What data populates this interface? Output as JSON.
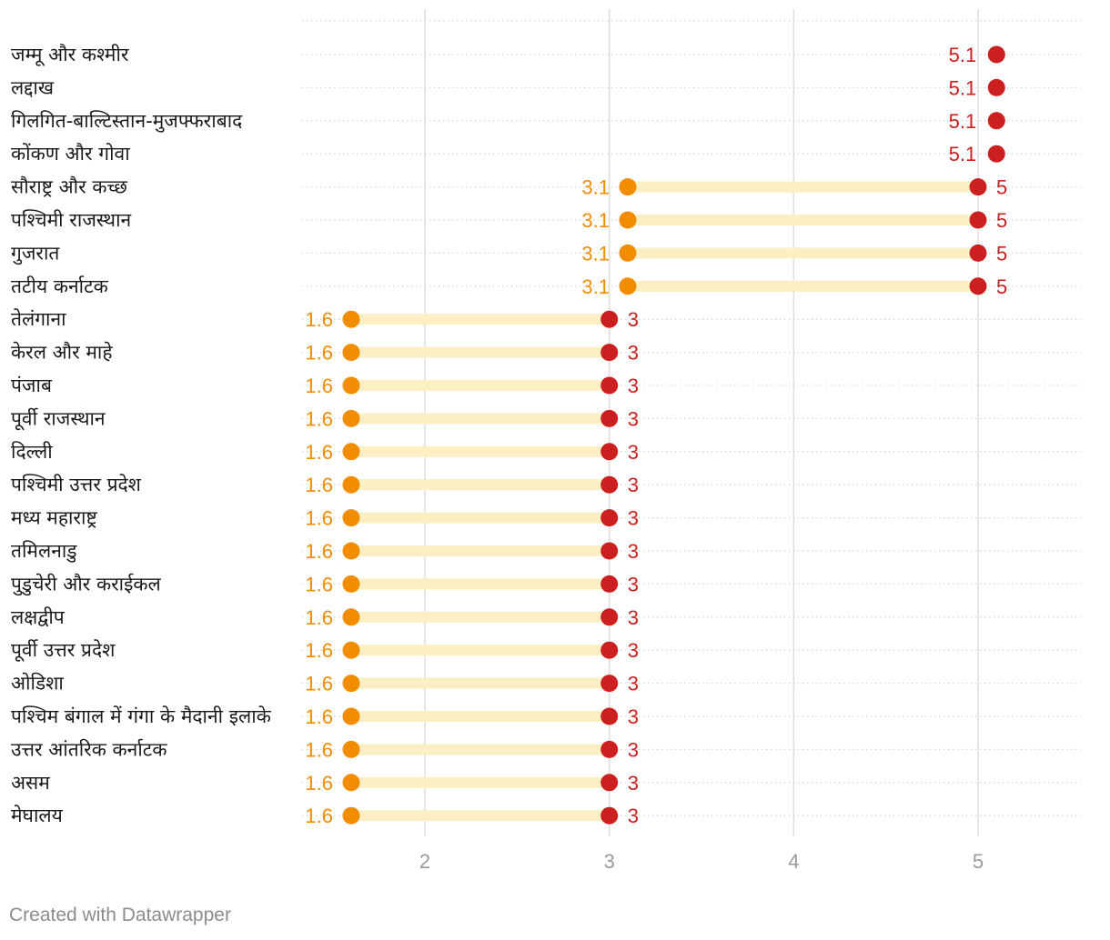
{
  "chart_data": {
    "type": "range-dot",
    "xlim": [
      1.3,
      5.55
    ],
    "xticks": [
      2,
      3,
      4,
      5
    ],
    "grid": true,
    "colors": {
      "low": "#f28c00",
      "high": "#cc1f1f",
      "bar": "#fcefc4",
      "grid": "#dddddd",
      "row_dots": "#d6d6d6"
    },
    "rows": [
      {
        "label": "जम्मू और कश्मीर",
        "low": null,
        "high": 5.1,
        "high_label": "5.1"
      },
      {
        "label": "लद्दाख",
        "low": null,
        "high": 5.1,
        "high_label": "5.1"
      },
      {
        "label": "गिलगित-बाल्टिस्तान-मुजफ्फराबाद",
        "low": null,
        "high": 5.1,
        "high_label": "5.1"
      },
      {
        "label": "कोंकण और गोवा",
        "low": null,
        "high": 5.1,
        "high_label": "5.1"
      },
      {
        "label": "सौराष्ट्र और कच्छ",
        "low": 3.1,
        "high": 5,
        "low_label": "3.1",
        "high_label": "5"
      },
      {
        "label": "पश्चिमी राजस्थान",
        "low": 3.1,
        "high": 5,
        "low_label": "3.1",
        "high_label": "5"
      },
      {
        "label": "गुजरात",
        "low": 3.1,
        "high": 5,
        "low_label": "3.1",
        "high_label": "5"
      },
      {
        "label": "तटीय कर्नाटक",
        "low": 3.1,
        "high": 5,
        "low_label": "3.1",
        "high_label": "5"
      },
      {
        "label": "तेलंगाना",
        "low": 1.6,
        "high": 3,
        "low_label": "1.6",
        "high_label": "3"
      },
      {
        "label": "केरल और माहे",
        "low": 1.6,
        "high": 3,
        "low_label": "1.6",
        "high_label": "3"
      },
      {
        "label": "पंजाब",
        "low": 1.6,
        "high": 3,
        "low_label": "1.6",
        "high_label": "3"
      },
      {
        "label": "पूर्वी राजस्थान",
        "low": 1.6,
        "high": 3,
        "low_label": "1.6",
        "high_label": "3"
      },
      {
        "label": "दिल्ली",
        "low": 1.6,
        "high": 3,
        "low_label": "1.6",
        "high_label": "3"
      },
      {
        "label": "पश्चिमी उत्तर प्रदेश",
        "low": 1.6,
        "high": 3,
        "low_label": "1.6",
        "high_label": "3"
      },
      {
        "label": "मध्य महाराष्ट्र",
        "low": 1.6,
        "high": 3,
        "low_label": "1.6",
        "high_label": "3"
      },
      {
        "label": "तमिलनाडु",
        "low": 1.6,
        "high": 3,
        "low_label": "1.6",
        "high_label": "3"
      },
      {
        "label": "पुडुचेरी और कराईकल",
        "low": 1.6,
        "high": 3,
        "low_label": "1.6",
        "high_label": "3"
      },
      {
        "label": "लक्षद्वीप",
        "low": 1.6,
        "high": 3,
        "low_label": "1.6",
        "high_label": "3"
      },
      {
        "label": "पूर्वी उत्तर प्रदेश",
        "low": 1.6,
        "high": 3,
        "low_label": "1.6",
        "high_label": "3"
      },
      {
        "label": "ओडिशा",
        "low": 1.6,
        "high": 3,
        "low_label": "1.6",
        "high_label": "3"
      },
      {
        "label": "पश्चिम बंगाल में गंगा के मैदानी इलाके",
        "low": 1.6,
        "high": 3,
        "low_label": "1.6",
        "high_label": "3"
      },
      {
        "label": "उत्तर आंतरिक कर्नाटक",
        "low": 1.6,
        "high": 3,
        "low_label": "1.6",
        "high_label": "3"
      },
      {
        "label": "असम",
        "low": 1.6,
        "high": 3,
        "low_label": "1.6",
        "high_label": "3"
      },
      {
        "label": "मेघालय",
        "low": 1.6,
        "high": 3,
        "low_label": "1.6",
        "high_label": "3"
      }
    ]
  },
  "footer": {
    "credit": "Created with Datawrapper"
  }
}
